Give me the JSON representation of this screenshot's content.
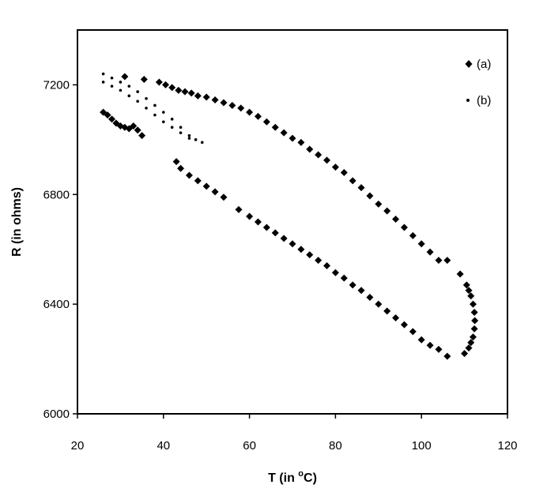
{
  "chart_data": {
    "type": "scatter",
    "title": "",
    "xlabel_main": "T (in ",
    "xlabel_sup": "o",
    "xlabel_tail": "C)",
    "ylabel": "R (in ohms)",
    "xlim": [
      20,
      120
    ],
    "ylim": [
      6000,
      7400
    ],
    "xticks": [
      20,
      40,
      60,
      80,
      100,
      120
    ],
    "yticks": [
      6000,
      6400,
      6800,
      7200
    ],
    "grid": false,
    "legend_position": "top-right",
    "series": [
      {
        "name": "(a)",
        "marker": "diamond",
        "color": "#000000",
        "points": [
          [
            26,
            7100
          ],
          [
            27,
            7090
          ],
          [
            28,
            7075
          ],
          [
            29,
            7060
          ],
          [
            30,
            7050
          ],
          [
            31,
            7045
          ],
          [
            32,
            7040
          ],
          [
            33,
            7050
          ],
          [
            34,
            7035
          ],
          [
            35,
            7015
          ],
          [
            31,
            7230
          ],
          [
            35.5,
            7220
          ],
          [
            39,
            7210
          ],
          [
            40.5,
            7200
          ],
          [
            42,
            7190
          ],
          [
            43.5,
            7180
          ],
          [
            45,
            7175
          ],
          [
            46.5,
            7170
          ],
          [
            48,
            7160
          ],
          [
            50,
            7155
          ],
          [
            52,
            7145
          ],
          [
            54,
            7135
          ],
          [
            56,
            7125
          ],
          [
            58,
            7115
          ],
          [
            60,
            7100
          ],
          [
            62,
            7085
          ],
          [
            64,
            7065
          ],
          [
            66,
            7045
          ],
          [
            68,
            7025
          ],
          [
            70,
            7005
          ],
          [
            72,
            6990
          ],
          [
            74,
            6965
          ],
          [
            76,
            6945
          ],
          [
            78,
            6925
          ],
          [
            80,
            6900
          ],
          [
            82,
            6880
          ],
          [
            84,
            6850
          ],
          [
            86,
            6825
          ],
          [
            88,
            6795
          ],
          [
            90,
            6765
          ],
          [
            92,
            6740
          ],
          [
            94,
            6710
          ],
          [
            96,
            6680
          ],
          [
            98,
            6650
          ],
          [
            100,
            6620
          ],
          [
            102,
            6590
          ],
          [
            104,
            6560
          ],
          [
            106,
            6560
          ],
          [
            109,
            6510
          ],
          [
            110.5,
            6470
          ],
          [
            111,
            6450
          ],
          [
            111.5,
            6430
          ],
          [
            112,
            6400
          ],
          [
            112.3,
            6370
          ],
          [
            112.4,
            6340
          ],
          [
            112.3,
            6310
          ],
          [
            112,
            6280
          ],
          [
            111.5,
            6260
          ],
          [
            111,
            6240
          ],
          [
            110,
            6220
          ],
          [
            43,
            6920
          ],
          [
            44,
            6895
          ],
          [
            46,
            6870
          ],
          [
            48,
            6850
          ],
          [
            50,
            6830
          ],
          [
            52,
            6810
          ],
          [
            54,
            6790
          ],
          [
            57.5,
            6745
          ],
          [
            60,
            6720
          ],
          [
            62,
            6700
          ],
          [
            64,
            6680
          ],
          [
            66,
            6660
          ],
          [
            68,
            6640
          ],
          [
            70,
            6620
          ],
          [
            72,
            6600
          ],
          [
            74,
            6580
          ],
          [
            76,
            6560
          ],
          [
            78,
            6540
          ],
          [
            80,
            6515
          ],
          [
            82,
            6495
          ],
          [
            84,
            6470
          ],
          [
            86,
            6450
          ],
          [
            88,
            6425
          ],
          [
            90,
            6400
          ],
          [
            92,
            6375
          ],
          [
            94,
            6350
          ],
          [
            96,
            6325
          ],
          [
            98,
            6300
          ],
          [
            100,
            6270
          ],
          [
            102,
            6250
          ],
          [
            104,
            6235
          ],
          [
            106,
            6210
          ]
        ]
      },
      {
        "name": "(b)",
        "marker": "dot",
        "color": "#000000",
        "points": [
          [
            26,
            7240
          ],
          [
            28,
            7225
          ],
          [
            30,
            7210
          ],
          [
            32,
            7195
          ],
          [
            34,
            7175
          ],
          [
            36,
            7150
          ],
          [
            38,
            7125
          ],
          [
            40,
            7100
          ],
          [
            42,
            7075
          ],
          [
            44,
            7045
          ],
          [
            46,
            7015
          ],
          [
            47.5,
            7000
          ],
          [
            26,
            7210
          ],
          [
            28,
            7195
          ],
          [
            30,
            7180
          ],
          [
            32,
            7160
          ],
          [
            34,
            7140
          ],
          [
            36,
            7115
          ],
          [
            38,
            7090
          ],
          [
            40,
            7065
          ],
          [
            42,
            7045
          ],
          [
            44,
            7025
          ],
          [
            46,
            7005
          ],
          [
            49,
            6990
          ]
        ]
      }
    ]
  }
}
